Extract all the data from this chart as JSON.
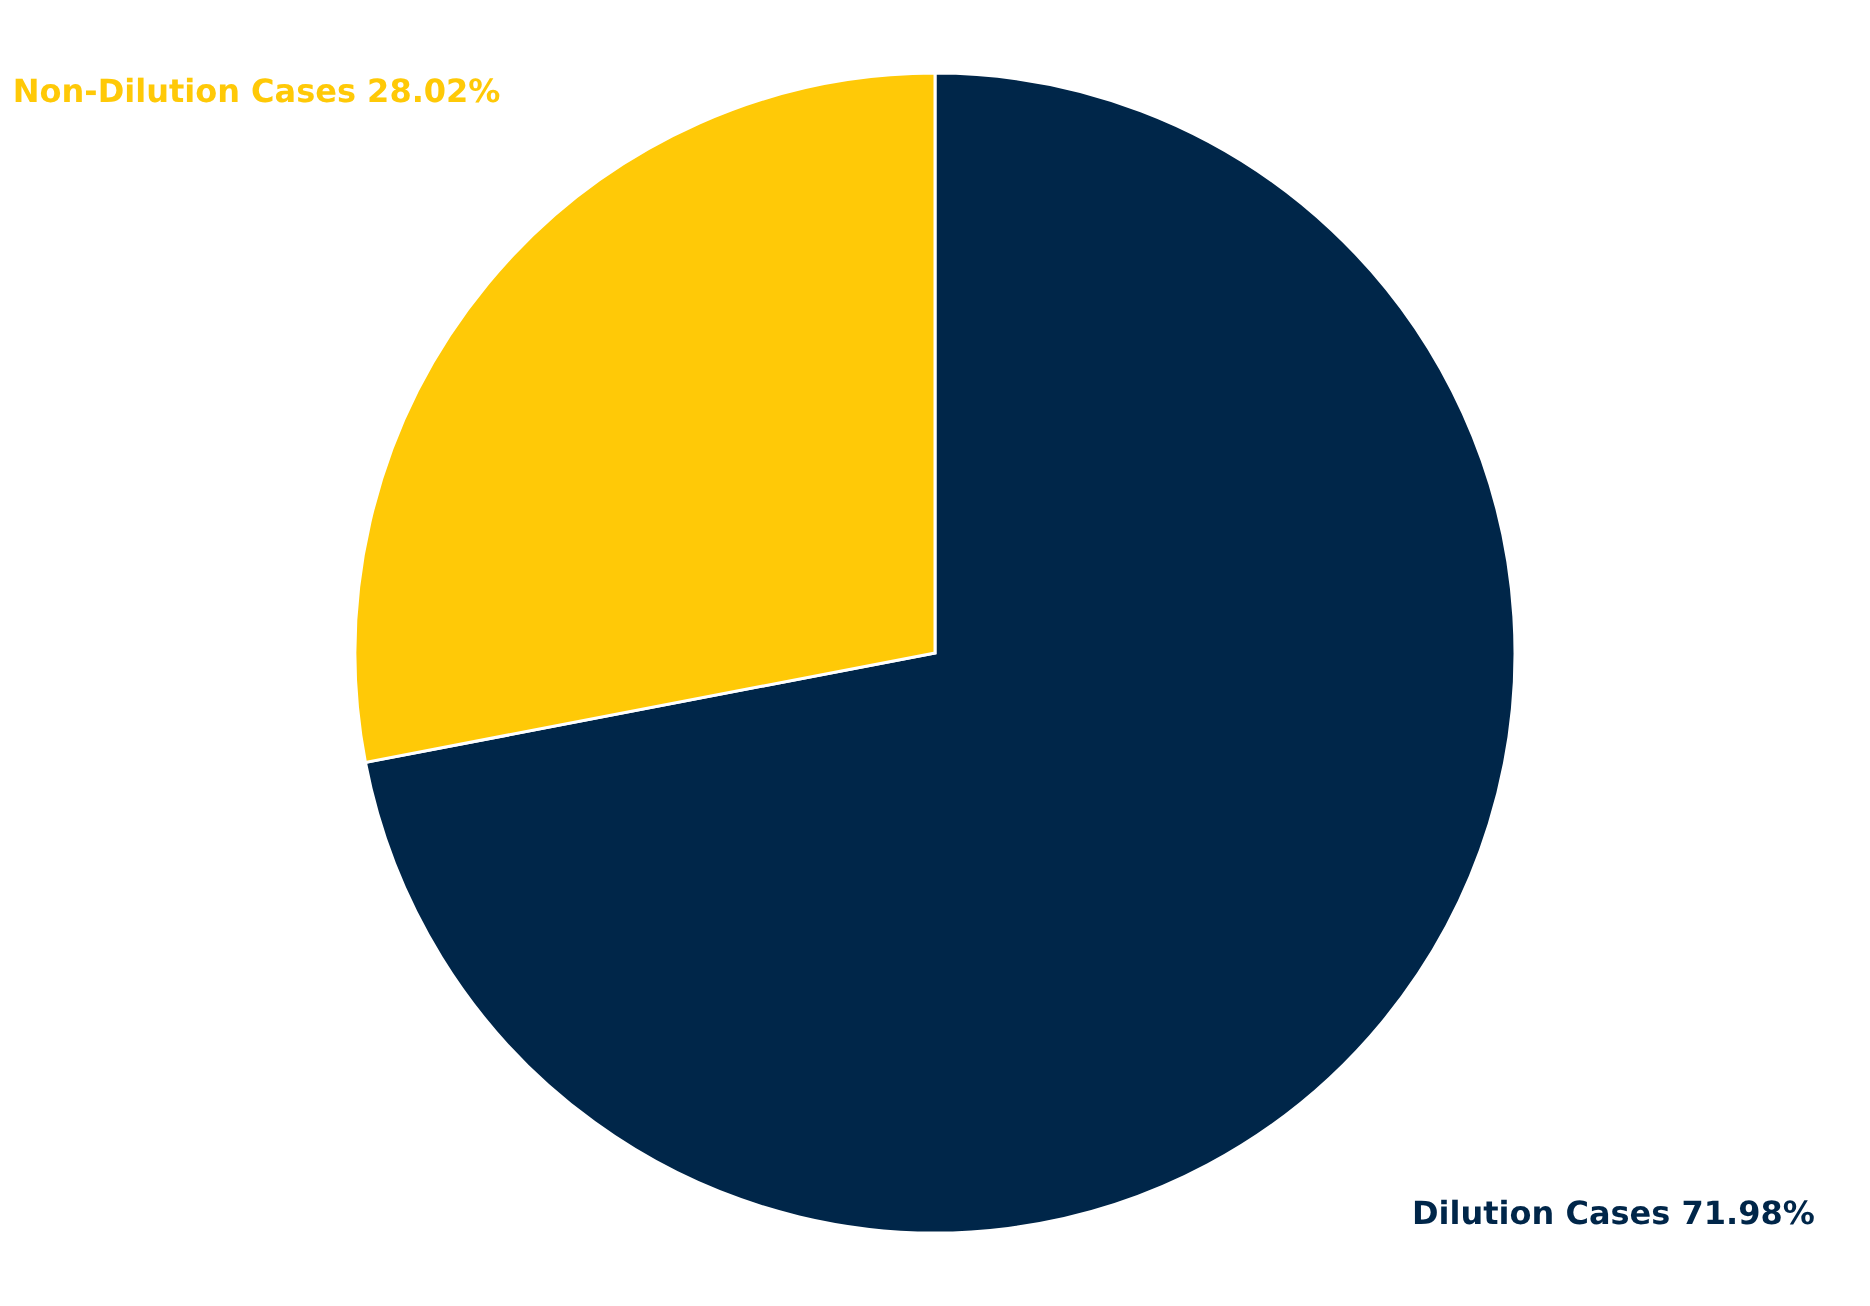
{
  "chart_data": {
    "type": "pie",
    "categories": [
      "Dilution Cases",
      "Non-Dilution Cases"
    ],
    "values": [
      71.98,
      28.02
    ],
    "value_labels": [
      "71.98%",
      "28.02%"
    ],
    "colors": [
      "#002649",
      "#ffc907"
    ]
  }
}
